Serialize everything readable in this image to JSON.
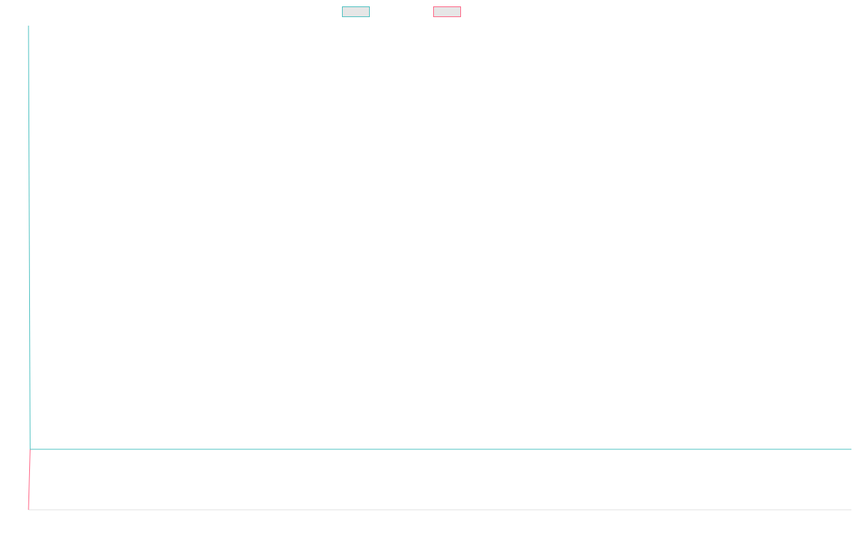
{
  "chart_data": {
    "type": "line",
    "title": "",
    "xlabel": "",
    "ylabel": "",
    "grid": false,
    "legend_position": "top-center",
    "ylim": [
      -1,
      7
    ],
    "xlim": [
      0,
      1000
    ],
    "series": [
      {
        "name": "",
        "color": "#4bc0c0",
        "fill": "#e6e6e6",
        "points": [
          [
            0,
            7
          ],
          [
            2,
            0
          ],
          [
            1000,
            0
          ]
        ]
      },
      {
        "name": "",
        "color": "#ff6384",
        "fill": "#e6e6e6",
        "points": [
          [
            0,
            -1
          ],
          [
            2,
            0
          ]
        ]
      }
    ]
  }
}
